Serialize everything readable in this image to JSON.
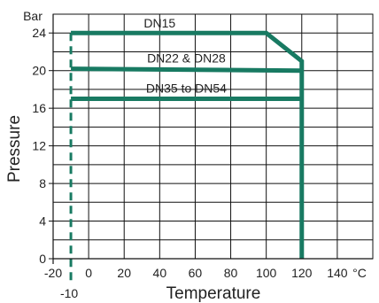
{
  "chart_data": {
    "type": "line",
    "title": "",
    "xlabel": "Temperature",
    "ylabel": "Pressure",
    "x_unit": "°C",
    "y_unit": "Bar",
    "xlim": [
      -20,
      140
    ],
    "ylim": [
      0,
      26
    ],
    "x_ticks": [
      "-20",
      "0",
      "20",
      "40",
      "60",
      "80",
      "100",
      "120",
      "140"
    ],
    "y_ticks": [
      "0",
      "4",
      "8",
      "12",
      "16",
      "20",
      "24"
    ],
    "grid": true,
    "line_color": "#187a62",
    "series": [
      {
        "name": "DN15",
        "x": [
          -10,
          100,
          120,
          120
        ],
        "y": [
          24,
          24,
          21,
          0
        ]
      },
      {
        "name": "DN22 & DN28",
        "x": [
          -10,
          120
        ],
        "y": [
          20.2,
          20
        ]
      },
      {
        "name": "DN35 to DN54",
        "x": [
          -10,
          120
        ],
        "y": [
          17,
          17
        ]
      }
    ],
    "annotations": [
      {
        "text": "-10",
        "x": -10,
        "style": "dashed vertical line"
      }
    ]
  }
}
